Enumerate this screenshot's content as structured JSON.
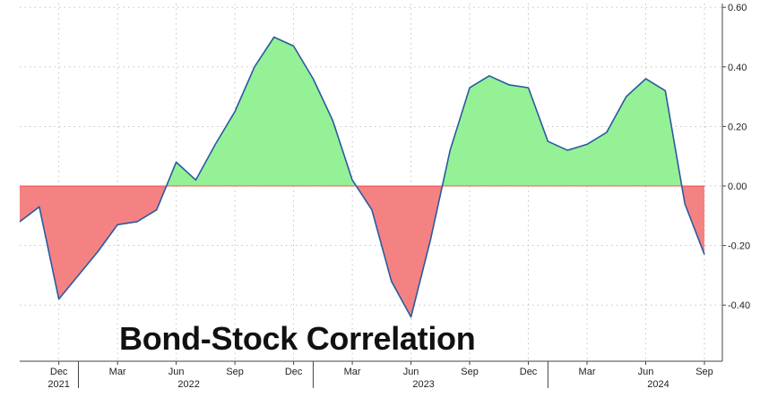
{
  "chart_data": {
    "type": "area",
    "title": "Bond-Stock Correlation",
    "xlabel": "",
    "ylabel": "",
    "ylim": [
      -0.55,
      0.62
    ],
    "y_ticks": [
      "0.60",
      "0.40",
      "0.20",
      "0.00",
      "-0.20",
      "-0.40"
    ],
    "y_tick_values": [
      0.6,
      0.4,
      0.2,
      0.0,
      -0.2,
      -0.4
    ],
    "x_month_labels": [
      "Dec",
      "Mar",
      "Jun",
      "Sep",
      "Dec",
      "Mar",
      "Jun",
      "Sep",
      "Dec",
      "Mar",
      "Jun",
      "Sep"
    ],
    "x_year_labels": [
      "2021",
      "2022",
      "2023",
      "2024"
    ],
    "grid": true,
    "positive_fill": "#8ff08f",
    "negative_fill": "#f47b7b",
    "line_color": "#2a5aa0",
    "series": [
      {
        "x": [
          "2021-10",
          "2021-11",
          "2021-12",
          "2022-01",
          "2022-02",
          "2022-03",
          "2022-04",
          "2022-05",
          "2022-06",
          "2022-07",
          "2022-08",
          "2022-09",
          "2022-10",
          "2022-11",
          "2022-12",
          "2023-01",
          "2023-02",
          "2023-03",
          "2023-04",
          "2023-05",
          "2023-06",
          "2023-07",
          "2023-08",
          "2023-09",
          "2023-10",
          "2023-11",
          "2023-12",
          "2024-01",
          "2024-02",
          "2024-03",
          "2024-04",
          "2024-05",
          "2024-06",
          "2024-07",
          "2024-08",
          "2024-09"
        ],
        "values": [
          -0.12,
          -0.07,
          -0.38,
          -0.3,
          -0.22,
          -0.13,
          -0.12,
          -0.08,
          0.08,
          0.02,
          0.14,
          0.25,
          0.4,
          0.5,
          0.47,
          0.36,
          0.22,
          0.02,
          -0.08,
          -0.32,
          -0.44,
          -0.18,
          0.12,
          0.33,
          0.37,
          0.34,
          0.33,
          0.15,
          0.12,
          0.14,
          0.18,
          0.3,
          0.36,
          0.32,
          -0.06,
          -0.23
        ]
      }
    ]
  }
}
